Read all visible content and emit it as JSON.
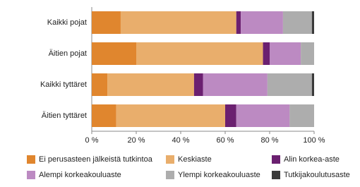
{
  "chart_data": {
    "type": "stacked-bar-horizontal",
    "categories": [
      "Kaikki pojat",
      "Äitien pojat",
      "Kaikki tyttäret",
      "Äitien tyttäret"
    ],
    "series": [
      {
        "name": "Ei perusasteen jälkeistä tutkintoa",
        "color": "#e0862e",
        "values": [
          13,
          20,
          7,
          11
        ]
      },
      {
        "name": "Keskiaste",
        "color": "#e9ae6c",
        "values": [
          52,
          57,
          39,
          49
        ]
      },
      {
        "name": "Alin korkea-aste",
        "color": "#6b2070",
        "values": [
          2,
          3,
          4,
          5
        ]
      },
      {
        "name": "Alempi korkeakouluaste",
        "color": "#bc8ac2",
        "values": [
          19,
          14,
          29,
          24
        ]
      },
      {
        "name": "Ylempi korkeakouluaste",
        "color": "#adadad",
        "values": [
          13,
          6,
          20,
          11
        ]
      },
      {
        "name": "Tutkijakoulutusaste",
        "color": "#3a3a3a",
        "values": [
          1,
          0,
          1,
          0
        ]
      }
    ],
    "xlim": [
      0,
      100
    ],
    "xticks": [
      {
        "value": 0,
        "label": "0 %"
      },
      {
        "value": 20,
        "label": "20 %"
      },
      {
        "value": 40,
        "label": "40 %"
      },
      {
        "value": 60,
        "label": "60 %"
      },
      {
        "value": 80,
        "label": "80 %"
      },
      {
        "value": 100,
        "label": "100 %"
      }
    ],
    "grid": false
  }
}
